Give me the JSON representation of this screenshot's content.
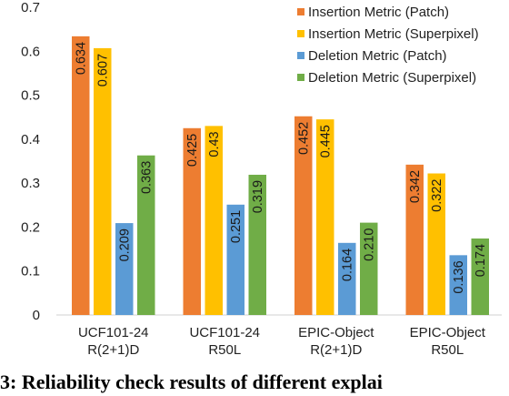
{
  "chart_data": {
    "type": "bar",
    "categories": [
      [
        "UCF101-24",
        "R(2+1)D"
      ],
      [
        "UCF101-24",
        "R50L"
      ],
      [
        "EPIC-Object",
        "R(2+1)D"
      ],
      [
        "EPIC-Object",
        "R50L"
      ]
    ],
    "series": [
      {
        "name": "Insertion Metric (Patch)",
        "color": "#ED7D31",
        "values": [
          0.634,
          0.425,
          0.452,
          0.342
        ],
        "labels": [
          "0.634",
          "0.425",
          "0.452",
          "0.342"
        ]
      },
      {
        "name": "Insertion Metric (Superpixel)",
        "color": "#FFC000",
        "values": [
          0.607,
          0.43,
          0.445,
          0.322
        ],
        "labels": [
          "0.607",
          "0.43",
          "0.445",
          "0.322"
        ]
      },
      {
        "name": "Deletion Metric (Patch)",
        "color": "#5B9BD5",
        "values": [
          0.209,
          0.251,
          0.164,
          0.136
        ],
        "labels": [
          "0.209",
          "0.251",
          "0.164",
          "0.136"
        ]
      },
      {
        "name": "Deletion Metric (Superpixel)",
        "color": "#70AD47",
        "values": [
          0.363,
          0.319,
          0.21,
          0.174
        ],
        "labels": [
          "0.363",
          "0.319",
          "0.210",
          "0.174"
        ]
      }
    ],
    "ylim": [
      0,
      0.7
    ],
    "yticks": [
      "0",
      "0.1",
      "0.2",
      "0.3",
      "0.4",
      "0.5",
      "0.6",
      "0.7"
    ],
    "legend_position": "top-right",
    "grid": false,
    "data_label_orientation": "rotated"
  },
  "caption": {
    "text": "3: Reliability check results of different explai"
  }
}
